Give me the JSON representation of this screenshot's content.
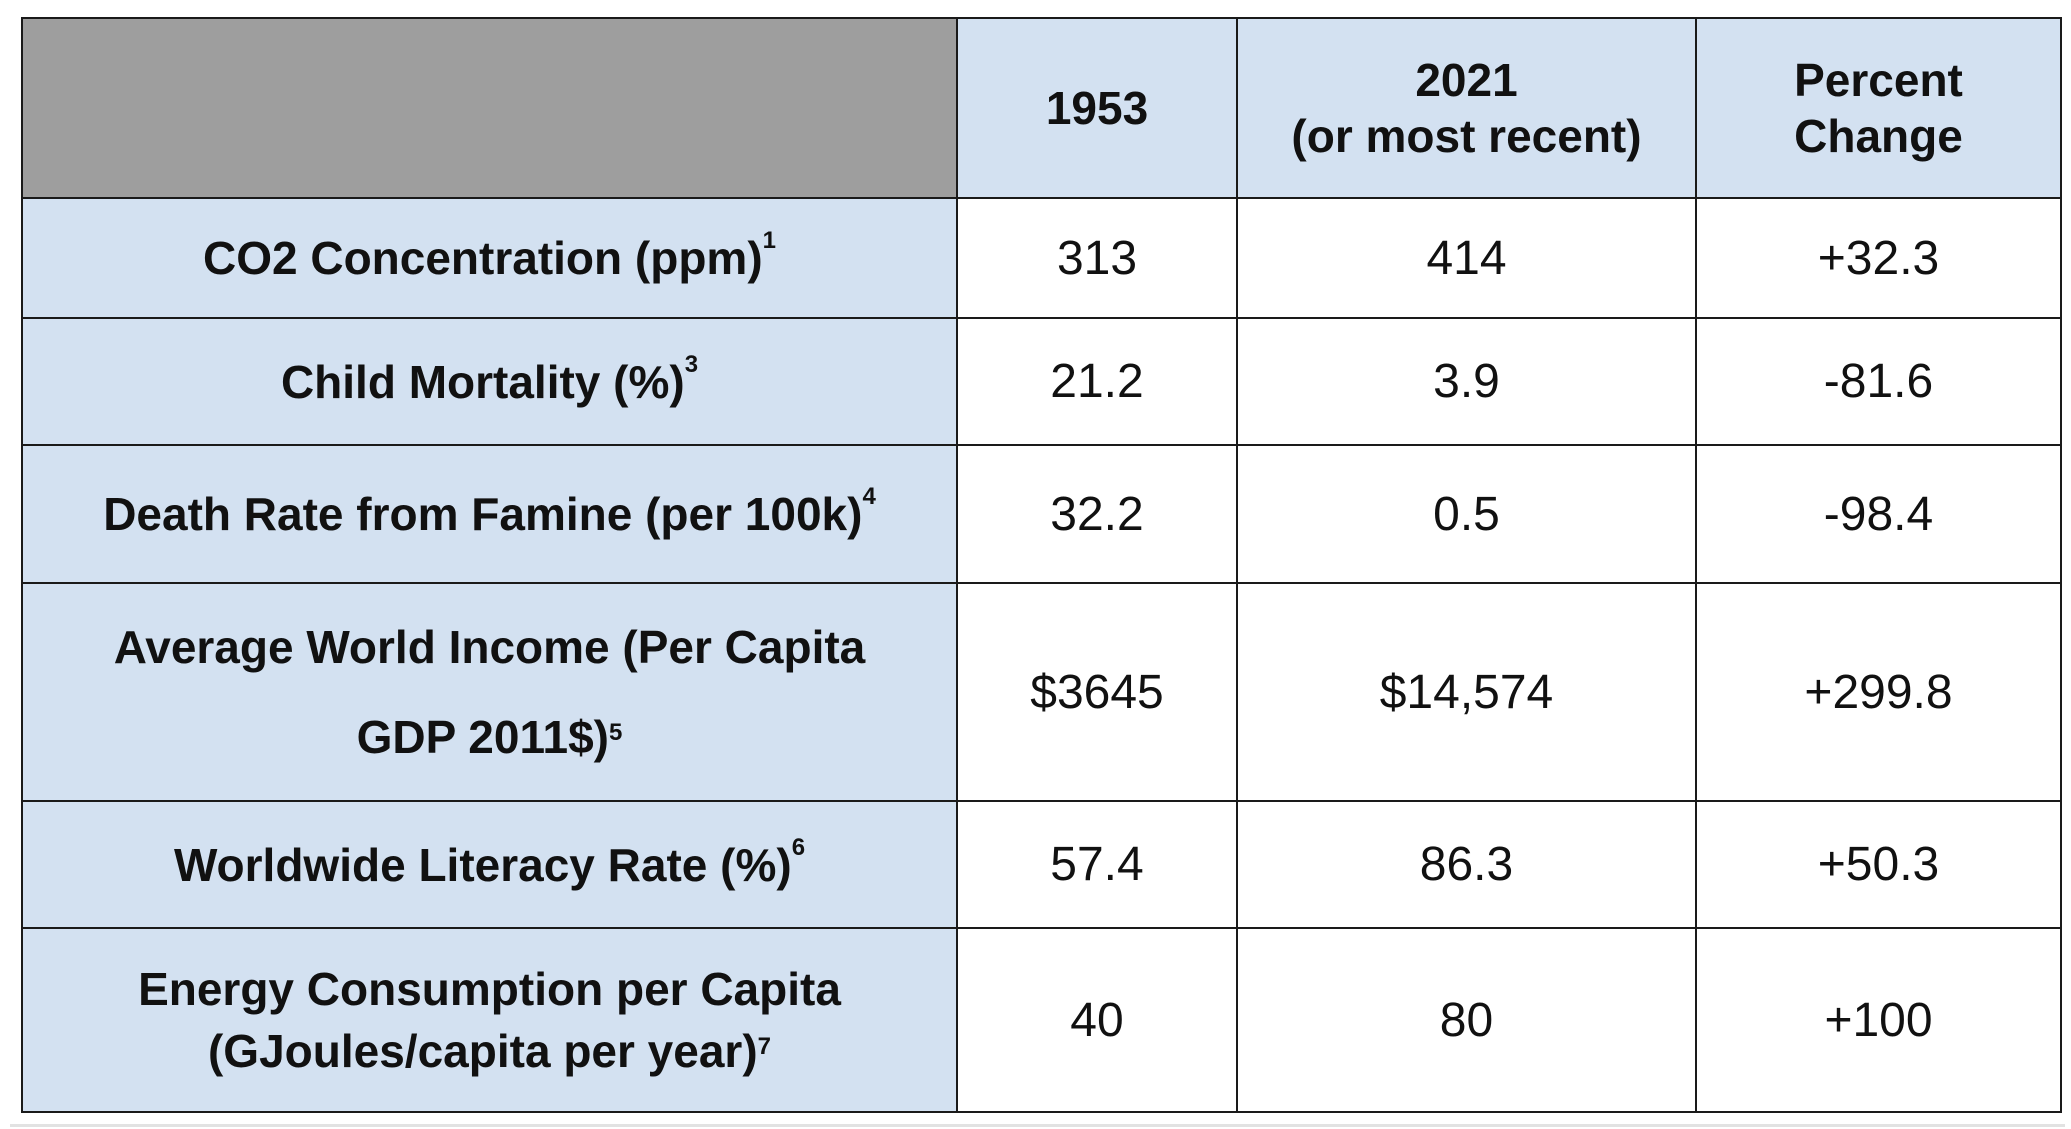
{
  "table": {
    "headers": {
      "col1953": "1953",
      "col2021_line1": "2021",
      "col2021_line2": "(or most recent)",
      "pct_line1": "Percent",
      "pct_line2": "Change"
    },
    "rows": [
      {
        "label": "CO2 Concentration (ppm)",
        "note": "1",
        "v1953": "313",
        "v2021": "414",
        "pct": "+32.3"
      },
      {
        "label": "Child Mortality (%)",
        "note": "3",
        "v1953": "21.2",
        "v2021": "3.9",
        "pct": "-81.6"
      },
      {
        "label": "Death Rate from Famine (per 100k)",
        "note": "4",
        "v1953": "32.2",
        "v2021": "0.5",
        "pct": "-98.4"
      },
      {
        "label_line1": "Average World Income (Per Capita",
        "label_line2": "GDP 2011$)",
        "note": "5",
        "v1953": "$3645",
        "v2021": "$14,574",
        "pct": "+299.8"
      },
      {
        "label": "Worldwide Literacy Rate (%)",
        "note": "6",
        "v1953": "57.4",
        "v2021": "86.3",
        "pct": "+50.3"
      },
      {
        "label_line1": "Energy Consumption per Capita",
        "label_line2": "(GJoules/capita per year)",
        "note": "7",
        "v1953": "40",
        "v2021": "80",
        "pct": "+100"
      }
    ]
  }
}
